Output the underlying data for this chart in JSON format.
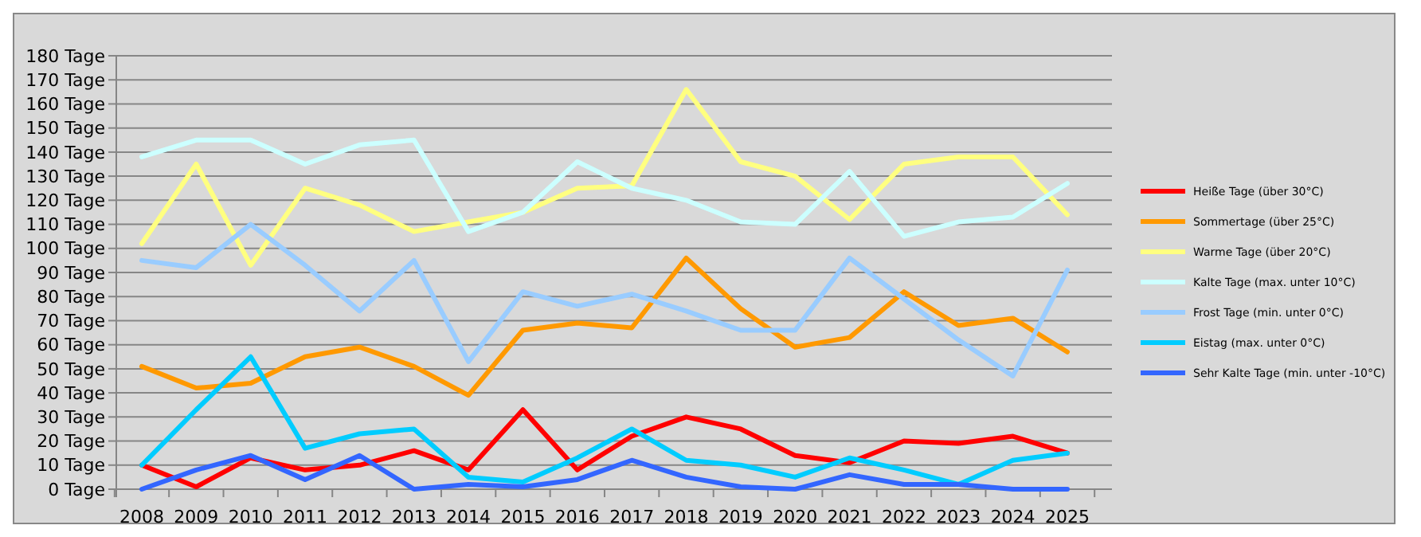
{
  "chart_data": {
    "type": "line",
    "categories": [
      "2008",
      "2009",
      "2010",
      "2011",
      "2012",
      "2013",
      "2014",
      "2015",
      "2016",
      "2017",
      "2018",
      "2019",
      "2020",
      "2021",
      "2022",
      "2023",
      "2024",
      "2025"
    ],
    "ylim": [
      0,
      180
    ],
    "yticks": [
      {
        "value": 0,
        "label": "0 Tage"
      },
      {
        "value": 10,
        "label": "10 Tage"
      },
      {
        "value": 20,
        "label": "20 Tage"
      },
      {
        "value": 30,
        "label": "30 Tage"
      },
      {
        "value": 40,
        "label": "40 Tage"
      },
      {
        "value": 50,
        "label": "50 Tage"
      },
      {
        "value": 60,
        "label": "60 Tage"
      },
      {
        "value": 70,
        "label": "70 Tage"
      },
      {
        "value": 80,
        "label": "80 Tage"
      },
      {
        "value": 90,
        "label": "90 Tage"
      },
      {
        "value": 100,
        "label": "100 Tage"
      },
      {
        "value": 110,
        "label": "110 Tage"
      },
      {
        "value": 120,
        "label": "120 Tage"
      },
      {
        "value": 130,
        "label": "130 Tage"
      },
      {
        "value": 140,
        "label": "140 Tage"
      },
      {
        "value": 150,
        "label": "150 Tage"
      },
      {
        "value": 160,
        "label": "160 Tage"
      },
      {
        "value": 170,
        "label": "170 Tage"
      },
      {
        "value": 180,
        "label": "180 Tage"
      }
    ],
    "grid": "y",
    "legend": "right",
    "marker": "none",
    "line_style": "solid",
    "series": [
      {
        "name": "Heiße Tage (über 30°C)",
        "color": "#ff0000",
        "values": [
          10,
          1,
          13,
          8,
          10,
          16,
          8,
          33,
          8,
          22,
          30,
          25,
          14,
          11,
          20,
          19,
          22,
          15
        ]
      },
      {
        "name": "Sommertage (über 25°C)",
        "color": "#ff9900",
        "values": [
          51,
          42,
          44,
          55,
          59,
          51,
          39,
          66,
          69,
          67,
          96,
          75,
          59,
          63,
          82,
          68,
          71,
          57
        ]
      },
      {
        "name": "Warme Tage (über 20°C)",
        "color": "#ffff80",
        "values": [
          102,
          135,
          93,
          125,
          118,
          107,
          111,
          115,
          125,
          126,
          166,
          136,
          130,
          112,
          135,
          138,
          138,
          114
        ]
      },
      {
        "name": "Kalte Tage (max. unter 10°C)",
        "color": "#ccffff",
        "values": [
          138,
          145,
          145,
          135,
          143,
          145,
          107,
          115,
          136,
          125,
          120,
          111,
          110,
          132,
          105,
          111,
          113,
          127
        ]
      },
      {
        "name": "Frost Tage (min. unter 0°C)",
        "color": "#99ccff",
        "values": [
          95,
          92,
          110,
          93,
          74,
          95,
          53,
          82,
          76,
          81,
          74,
          66,
          66,
          96,
          79,
          62,
          47,
          91
        ]
      },
      {
        "name": "Eistag (max. unter 0°C)",
        "color": "#00ccff",
        "values": [
          10,
          33,
          55,
          17,
          23,
          25,
          5,
          3,
          13,
          25,
          12,
          10,
          5,
          13,
          8,
          2,
          12,
          15
        ]
      },
      {
        "name": "Sehr Kalte Tage (min. unter -10°C)",
        "color": "#3366ff",
        "values": [
          0,
          8,
          14,
          4,
          14,
          0,
          2,
          1,
          4,
          12,
          5,
          1,
          0,
          6,
          2,
          2,
          0,
          0
        ]
      }
    ]
  }
}
